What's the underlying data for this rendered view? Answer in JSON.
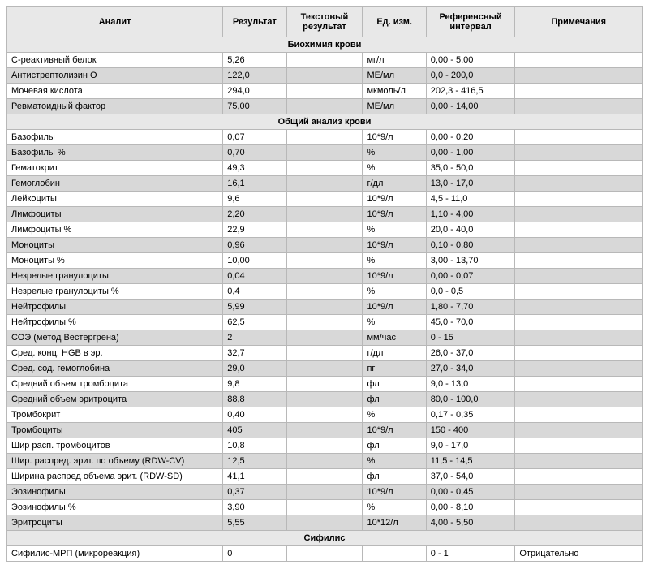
{
  "headers": {
    "analyte": "Аналит",
    "result": "Результат",
    "text_result": "Текстовый результат",
    "unit": "Ед. изм.",
    "ref_interval": "Референсный интервал",
    "note": "Примечания"
  },
  "sections": [
    {
      "title": "Биохимия крови",
      "rows": [
        {
          "analyte": "С-реактивный белок",
          "result": "5,26",
          "text": "",
          "unit": "мг/л",
          "ref": "0,00 - 5,00",
          "note": ""
        },
        {
          "analyte": "Антистрептолизин О",
          "result": "122,0",
          "text": "",
          "unit": "МЕ/мл",
          "ref": "0,0 - 200,0",
          "note": ""
        },
        {
          "analyte": "Мочевая кислота",
          "result": "294,0",
          "text": "",
          "unit": "мкмоль/л",
          "ref": "202,3 - 416,5",
          "note": ""
        },
        {
          "analyte": "Ревматоидный фактор",
          "result": "75,00",
          "text": "",
          "unit": "МЕ/мл",
          "ref": "0,00 - 14,00",
          "note": ""
        }
      ]
    },
    {
      "title": "Общий анализ крови",
      "rows": [
        {
          "analyte": "Базофилы",
          "result": "0,07",
          "text": "",
          "unit": "10*9/л",
          "ref": "0,00 - 0,20",
          "note": ""
        },
        {
          "analyte": "Базофилы %",
          "result": "0,70",
          "text": "",
          "unit": "%",
          "ref": "0,00 - 1,00",
          "note": ""
        },
        {
          "analyte": "Гематокрит",
          "result": "49,3",
          "text": "",
          "unit": "%",
          "ref": "35,0 - 50,0",
          "note": ""
        },
        {
          "analyte": "Гемоглобин",
          "result": "16,1",
          "text": "",
          "unit": "г/дл",
          "ref": "13,0 - 17,0",
          "note": ""
        },
        {
          "analyte": "Лейкоциты",
          "result": "9,6",
          "text": "",
          "unit": "10*9/л",
          "ref": "4,5 - 11,0",
          "note": ""
        },
        {
          "analyte": "Лимфоциты",
          "result": "2,20",
          "text": "",
          "unit": "10*9/л",
          "ref": "1,10 - 4,00",
          "note": ""
        },
        {
          "analyte": "Лимфоциты %",
          "result": "22,9",
          "text": "",
          "unit": "%",
          "ref": "20,0 - 40,0",
          "note": ""
        },
        {
          "analyte": "Моноциты",
          "result": "0,96",
          "text": "",
          "unit": "10*9/л",
          "ref": "0,10 - 0,80",
          "note": ""
        },
        {
          "analyte": "Моноциты %",
          "result": "10,00",
          "text": "",
          "unit": "%",
          "ref": "3,00 - 13,70",
          "note": ""
        },
        {
          "analyte": "Незрелые гранулоциты",
          "result": "0,04",
          "text": "",
          "unit": "10*9/л",
          "ref": "0,00 - 0,07",
          "note": ""
        },
        {
          "analyte": "Незрелые гранулоциты %",
          "result": "0,4",
          "text": "",
          "unit": "%",
          "ref": "0,0 - 0,5",
          "note": ""
        },
        {
          "analyte": "Нейтрофилы",
          "result": "5,99",
          "text": "",
          "unit": "10*9/л",
          "ref": "1,80 - 7,70",
          "note": ""
        },
        {
          "analyte": "Нейтрофилы %",
          "result": "62,5",
          "text": "",
          "unit": "%",
          "ref": "45,0 - 70,0",
          "note": ""
        },
        {
          "analyte": "СОЭ (метод Вестергрена)",
          "result": "2",
          "text": "",
          "unit": "мм/час",
          "ref": "0 - 15",
          "note": ""
        },
        {
          "analyte": "Сред. конц. HGB в эр.",
          "result": "32,7",
          "text": "",
          "unit": "г/дл",
          "ref": "26,0 - 37,0",
          "note": ""
        },
        {
          "analyte": "Сред. сод. гемоглобина",
          "result": "29,0",
          "text": "",
          "unit": "пг",
          "ref": "27,0 - 34,0",
          "note": ""
        },
        {
          "analyte": "Средний объем тромбоцита",
          "result": "9,8",
          "text": "",
          "unit": "фл",
          "ref": "9,0 - 13,0",
          "note": ""
        },
        {
          "analyte": "Средний объем эритроцита",
          "result": "88,8",
          "text": "",
          "unit": "фл",
          "ref": "80,0 - 100,0",
          "note": ""
        },
        {
          "analyte": "Тромбокрит",
          "result": "0,40",
          "text": "",
          "unit": "%",
          "ref": "0,17 - 0,35",
          "note": ""
        },
        {
          "analyte": "Тромбоциты",
          "result": "405",
          "text": "",
          "unit": "10*9/л",
          "ref": "150 - 400",
          "note": ""
        },
        {
          "analyte": "Шир расп. тромбоцитов",
          "result": "10,8",
          "text": "",
          "unit": "фл",
          "ref": "9,0 - 17,0",
          "note": ""
        },
        {
          "analyte": "Шир. распред. эрит. по объему (RDW-CV)",
          "result": "12,5",
          "text": "",
          "unit": "%",
          "ref": "11,5 - 14,5",
          "note": ""
        },
        {
          "analyte": "Ширина распред объема эрит. (RDW-SD)",
          "result": "41,1",
          "text": "",
          "unit": "фл",
          "ref": "37,0 - 54,0",
          "note": ""
        },
        {
          "analyte": "Эозинофилы",
          "result": "0,37",
          "text": "",
          "unit": "10*9/л",
          "ref": "0,00 - 0,45",
          "note": ""
        },
        {
          "analyte": "Эозинофилы %",
          "result": "3,90",
          "text": "",
          "unit": "%",
          "ref": "0,00 - 8,10",
          "note": ""
        },
        {
          "analyte": "Эритроциты",
          "result": "5,55",
          "text": "",
          "unit": "10*12/л",
          "ref": "4,00 - 5,50",
          "note": ""
        }
      ]
    },
    {
      "title": "Сифилис",
      "rows": [
        {
          "analyte": "Сифилис-МРП (микрореакция)",
          "result": "0",
          "text": "",
          "unit": "",
          "ref": "0 - 1",
          "note": "Отрицательно"
        }
      ]
    }
  ],
  "colors": {
    "header_bg": "#e8e8e8",
    "alt_bg": "#d8d8d8",
    "border": "#b8b8b8",
    "text": "#000000",
    "page_bg": "#ffffff"
  },
  "fonts": {
    "family": "Arial",
    "base_size_pt": 11
  }
}
